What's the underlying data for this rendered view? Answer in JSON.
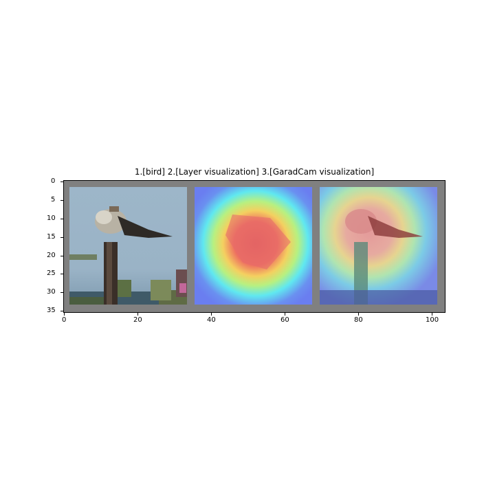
{
  "figure": {
    "title": "1.[bird] 2.[Layer visualization] 3.[GaradCam visualization]",
    "x_ticks": [
      "0",
      "20",
      "40",
      "60",
      "80",
      "100"
    ],
    "y_ticks": [
      "0",
      "5",
      "10",
      "15",
      "20",
      "25",
      "30",
      "35"
    ],
    "panels": [
      {
        "id": "original",
        "subject": "bird"
      },
      {
        "id": "layer-heatmap",
        "subject": "Layer visualization"
      },
      {
        "id": "gradcam-overlay",
        "subject": "GaradCam visualization"
      }
    ],
    "colors": {
      "background": "#808080",
      "sky": "#9ab4c8",
      "heat_hot": "#e84848",
      "heat_cold": "#6a7ef0"
    }
  }
}
